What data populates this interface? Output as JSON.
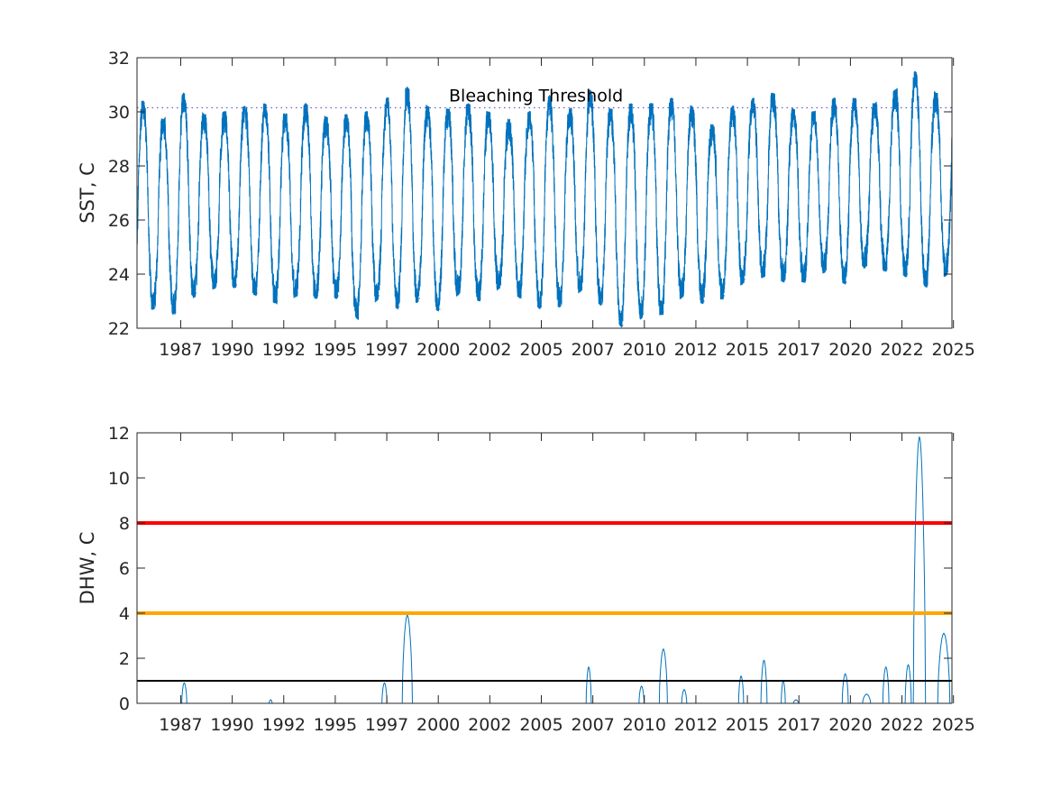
{
  "chart_data": [
    {
      "type": "line",
      "ylabel": "SST, C",
      "xlim": [
        1985.0,
        2025.1
      ],
      "ylim": [
        22,
        32
      ],
      "yticks": [
        22,
        24,
        26,
        28,
        30,
        32
      ],
      "xtick_labels": [
        "1987",
        "1990",
        "1992",
        "1995",
        "1997",
        "2000",
        "2002",
        "2005",
        "2007",
        "2010",
        "2012",
        "2015",
        "2017",
        "2020",
        "2022",
        "2025"
      ],
      "grid": false,
      "threshold": {
        "label": "Bleaching Threshold",
        "value": 30.15,
        "style": "dotted"
      },
      "series": [
        {
          "color": "#0072BD",
          "peaks": [
            {
              "year": 1985.3,
              "value": 30.3
            },
            {
              "year": 1986.3,
              "value": 29.6
            },
            {
              "year": 1987.3,
              "value": 30.6
            },
            {
              "year": 1988.3,
              "value": 29.8
            },
            {
              "year": 1989.3,
              "value": 29.9
            },
            {
              "year": 1990.3,
              "value": 30.1
            },
            {
              "year": 1991.3,
              "value": 30.2
            },
            {
              "year": 1992.3,
              "value": 29.8
            },
            {
              "year": 1993.3,
              "value": 30.2
            },
            {
              "year": 1994.3,
              "value": 29.7
            },
            {
              "year": 1995.3,
              "value": 29.8
            },
            {
              "year": 1996.3,
              "value": 29.9
            },
            {
              "year": 1997.3,
              "value": 30.4
            },
            {
              "year": 1998.3,
              "value": 30.8
            },
            {
              "year": 1999.3,
              "value": 30.1
            },
            {
              "year": 2000.3,
              "value": 30.0
            },
            {
              "year": 2001.3,
              "value": 30.2
            },
            {
              "year": 2002.3,
              "value": 29.9
            },
            {
              "year": 2003.3,
              "value": 29.6
            },
            {
              "year": 2004.3,
              "value": 29.9
            },
            {
              "year": 2005.3,
              "value": 30.5
            },
            {
              "year": 2006.3,
              "value": 30.0
            },
            {
              "year": 2007.3,
              "value": 30.7
            },
            {
              "year": 2008.3,
              "value": 30.0
            },
            {
              "year": 2009.3,
              "value": 30.2
            },
            {
              "year": 2010.3,
              "value": 30.2
            },
            {
              "year": 2011.3,
              "value": 30.4
            },
            {
              "year": 2012.3,
              "value": 30.1
            },
            {
              "year": 2013.3,
              "value": 29.4
            },
            {
              "year": 2014.3,
              "value": 30.1
            },
            {
              "year": 2015.3,
              "value": 30.4
            },
            {
              "year": 2016.3,
              "value": 30.6
            },
            {
              "year": 2017.3,
              "value": 30.0
            },
            {
              "year": 2018.3,
              "value": 29.9
            },
            {
              "year": 2019.3,
              "value": 30.4
            },
            {
              "year": 2020.3,
              "value": 30.4
            },
            {
              "year": 2021.3,
              "value": 30.2
            },
            {
              "year": 2022.3,
              "value": 30.7
            },
            {
              "year": 2023.3,
              "value": 31.4
            },
            {
              "year": 2024.3,
              "value": 30.6
            }
          ],
          "troughs": [
            {
              "year": 1985.9,
              "value": 22.8
            },
            {
              "year": 1986.9,
              "value": 22.6
            },
            {
              "year": 1987.9,
              "value": 23.3
            },
            {
              "year": 1988.9,
              "value": 23.6
            },
            {
              "year": 1989.9,
              "value": 23.6
            },
            {
              "year": 1990.9,
              "value": 23.3
            },
            {
              "year": 1991.9,
              "value": 23.0
            },
            {
              "year": 1992.9,
              "value": 23.3
            },
            {
              "year": 1993.9,
              "value": 23.2
            },
            {
              "year": 1994.9,
              "value": 23.2
            },
            {
              "year": 1995.9,
              "value": 22.4
            },
            {
              "year": 1996.9,
              "value": 23.2
            },
            {
              "year": 1997.9,
              "value": 22.8
            },
            {
              "year": 1998.9,
              "value": 23.1
            },
            {
              "year": 1999.9,
              "value": 22.7
            },
            {
              "year": 2000.9,
              "value": 23.4
            },
            {
              "year": 2001.9,
              "value": 23.1
            },
            {
              "year": 2002.9,
              "value": 23.6
            },
            {
              "year": 2003.9,
              "value": 23.2
            },
            {
              "year": 2004.9,
              "value": 22.8
            },
            {
              "year": 2005.9,
              "value": 22.9
            },
            {
              "year": 2006.9,
              "value": 23.5
            },
            {
              "year": 2007.9,
              "value": 22.9
            },
            {
              "year": 2008.9,
              "value": 22.1
            },
            {
              "year": 2009.9,
              "value": 22.5
            },
            {
              "year": 2010.9,
              "value": 22.6
            },
            {
              "year": 2011.9,
              "value": 23.3
            },
            {
              "year": 2012.9,
              "value": 23.0
            },
            {
              "year": 2013.9,
              "value": 23.2
            },
            {
              "year": 2014.9,
              "value": 23.8
            },
            {
              "year": 2015.9,
              "value": 24.0
            },
            {
              "year": 2016.9,
              "value": 23.8
            },
            {
              "year": 2017.9,
              "value": 23.8
            },
            {
              "year": 2018.9,
              "value": 24.2
            },
            {
              "year": 2019.9,
              "value": 23.7
            },
            {
              "year": 2020.9,
              "value": 24.4
            },
            {
              "year": 2021.9,
              "value": 24.2
            },
            {
              "year": 2022.9,
              "value": 24.0
            },
            {
              "year": 2023.9,
              "value": 23.6
            },
            {
              "year": 2024.9,
              "value": 24.1
            }
          ]
        }
      ]
    },
    {
      "type": "line",
      "ylabel": "DHW, C",
      "xlim": [
        1985.0,
        2025.1
      ],
      "ylim": [
        0,
        12
      ],
      "yticks": [
        0,
        2,
        4,
        6,
        8,
        10,
        12
      ],
      "xtick_labels": [
        "1987",
        "1990",
        "1992",
        "1995",
        "1997",
        "2000",
        "2002",
        "2005",
        "2007",
        "2010",
        "2012",
        "2015",
        "2017",
        "2020",
        "2022",
        "2025"
      ],
      "grid": false,
      "reference_lines": [
        {
          "value": 8,
          "color": "#FF0000"
        },
        {
          "value": 4,
          "color": "#FFA500"
        },
        {
          "value": 1,
          "color": "#000000"
        }
      ],
      "series": [
        {
          "color": "#0072BD",
          "events": [
            {
              "start": 1987.2,
              "end": 1987.45,
              "peak": 0.9
            },
            {
              "start": 1991.5,
              "end": 1991.65,
              "peak": 0.15
            },
            {
              "start": 1997.05,
              "end": 1997.3,
              "peak": 0.9
            },
            {
              "start": 1998.05,
              "end": 1998.55,
              "peak": 3.9
            },
            {
              "start": 2007.1,
              "end": 2007.35,
              "peak": 1.6
            },
            {
              "start": 2009.7,
              "end": 2009.95,
              "peak": 0.75
            },
            {
              "start": 2010.7,
              "end": 2011.1,
              "peak": 2.4
            },
            {
              "start": 2011.8,
              "end": 2012.05,
              "peak": 0.6
            },
            {
              "start": 2014.6,
              "end": 2014.85,
              "peak": 1.2
            },
            {
              "start": 2015.7,
              "end": 2016.0,
              "peak": 1.9
            },
            {
              "start": 2016.7,
              "end": 2016.9,
              "peak": 1.0
            },
            {
              "start": 2017.3,
              "end": 2017.55,
              "peak": 0.15
            },
            {
              "start": 2019.7,
              "end": 2020.0,
              "peak": 1.3
            },
            {
              "start": 2020.7,
              "end": 2021.1,
              "peak": 0.4
            },
            {
              "start": 2021.7,
              "end": 2022.0,
              "peak": 1.6
            },
            {
              "start": 2022.8,
              "end": 2023.1,
              "peak": 1.7
            },
            {
              "start": 2023.2,
              "end": 2023.8,
              "peak": 11.8
            },
            {
              "start": 2024.4,
              "end": 2025.0,
              "peak": 3.1
            }
          ]
        }
      ]
    }
  ]
}
